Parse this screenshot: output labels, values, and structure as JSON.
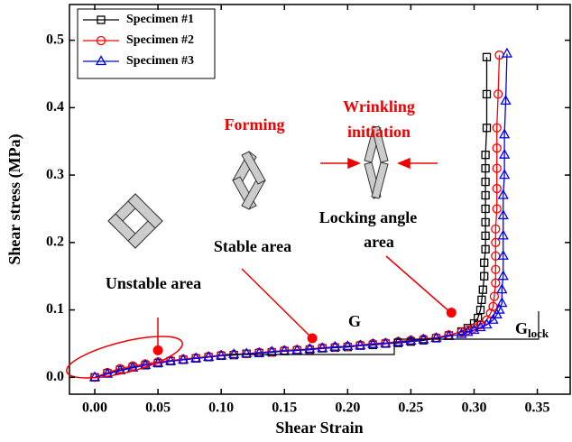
{
  "chart_data": {
    "type": "line",
    "x_label": "Shear Strain",
    "y_label": "Shear stress (MPa)",
    "xlim": [
      -0.02,
      0.376
    ],
    "ylim": [
      -0.025,
      0.553
    ],
    "xticks": [
      {
        "value": 0,
        "label": "0.00"
      },
      0.05,
      {
        "value": 0.1,
        "label": "0.10"
      },
      0.15,
      {
        "value": 0.2,
        "label": "0.20"
      },
      0.25,
      {
        "value": 0.3,
        "label": "0.30"
      },
      0.35
    ],
    "yticks": [
      {
        "value": 0,
        "label": "0.0"
      },
      0.1,
      0.2,
      0.3,
      0.4,
      0.5
    ],
    "series": [
      {
        "name": "Specimen #1",
        "color": "#000000",
        "marker": "square",
        "x": [
          0,
          0.01,
          0.02,
          0.03,
          0.04,
          0.05,
          0.06,
          0.07,
          0.08,
          0.09,
          0.1,
          0.11,
          0.12,
          0.13,
          0.14,
          0.15,
          0.16,
          0.17,
          0.18,
          0.19,
          0.2,
          0.21,
          0.22,
          0.23,
          0.24,
          0.25,
          0.26,
          0.27,
          0.28,
          0.29,
          0.295,
          0.3,
          0.303,
          0.305,
          0.306,
          0.307,
          0.308,
          0.308,
          0.309,
          0.309,
          0.309,
          0.309,
          0.309,
          0.309,
          0.309,
          0.309,
          0.31,
          0.31,
          0.31
        ],
        "values": [
          0,
          0.006,
          0.011,
          0.015,
          0.018,
          0.021,
          0.024,
          0.026,
          0.028,
          0.03,
          0.032,
          0.033,
          0.035,
          0.036,
          0.037,
          0.039,
          0.04,
          0.041,
          0.043,
          0.044,
          0.045,
          0.047,
          0.048,
          0.05,
          0.051,
          0.053,
          0.055,
          0.058,
          0.062,
          0.068,
          0.073,
          0.08,
          0.088,
          0.1,
          0.115,
          0.13,
          0.15,
          0.17,
          0.19,
          0.21,
          0.23,
          0.25,
          0.27,
          0.29,
          0.31,
          0.33,
          0.37,
          0.42,
          0.475
        ]
      },
      {
        "name": "Specimen #2",
        "color": "#ff0000",
        "marker": "circle",
        "x": [
          0,
          0.01,
          0.02,
          0.03,
          0.04,
          0.05,
          0.06,
          0.07,
          0.08,
          0.09,
          0.1,
          0.11,
          0.12,
          0.13,
          0.14,
          0.15,
          0.16,
          0.17,
          0.18,
          0.19,
          0.2,
          0.21,
          0.22,
          0.23,
          0.24,
          0.25,
          0.26,
          0.27,
          0.28,
          0.29,
          0.295,
          0.3,
          0.305,
          0.31,
          0.313,
          0.315,
          0.316,
          0.317,
          0.317,
          0.317,
          0.317,
          0.317,
          0.318,
          0.318,
          0.318,
          0.318,
          0.318,
          0.319,
          0.32
        ],
        "values": [
          0,
          0.007,
          0.013,
          0.017,
          0.02,
          0.023,
          0.025,
          0.027,
          0.029,
          0.031,
          0.033,
          0.034,
          0.035,
          0.037,
          0.038,
          0.04,
          0.041,
          0.042,
          0.044,
          0.045,
          0.046,
          0.048,
          0.05,
          0.051,
          0.053,
          0.055,
          0.057,
          0.059,
          0.063,
          0.067,
          0.07,
          0.073,
          0.078,
          0.085,
          0.095,
          0.105,
          0.12,
          0.14,
          0.16,
          0.18,
          0.2,
          0.22,
          0.25,
          0.28,
          0.31,
          0.34,
          0.37,
          0.42,
          0.478
        ]
      },
      {
        "name": "Specimen #3",
        "color": "#0000ff",
        "marker": "triangle",
        "x": [
          0,
          0.01,
          0.02,
          0.03,
          0.04,
          0.05,
          0.06,
          0.07,
          0.08,
          0.09,
          0.1,
          0.11,
          0.12,
          0.13,
          0.14,
          0.15,
          0.16,
          0.17,
          0.18,
          0.19,
          0.2,
          0.21,
          0.22,
          0.23,
          0.24,
          0.25,
          0.26,
          0.27,
          0.28,
          0.29,
          0.295,
          0.3,
          0.305,
          0.31,
          0.315,
          0.318,
          0.32,
          0.322,
          0.322,
          0.323,
          0.323,
          0.323,
          0.323,
          0.323,
          0.324,
          0.324,
          0.324,
          0.325,
          0.326
        ],
        "values": [
          0,
          0.005,
          0.01,
          0.014,
          0.018,
          0.021,
          0.024,
          0.026,
          0.028,
          0.03,
          0.032,
          0.034,
          0.035,
          0.036,
          0.038,
          0.039,
          0.04,
          0.042,
          0.043,
          0.045,
          0.046,
          0.047,
          0.049,
          0.05,
          0.052,
          0.054,
          0.056,
          0.058,
          0.061,
          0.064,
          0.067,
          0.07,
          0.074,
          0.078,
          0.085,
          0.093,
          0.1,
          0.11,
          0.13,
          0.15,
          0.18,
          0.21,
          0.24,
          0.27,
          0.3,
          0.33,
          0.36,
          0.41,
          0.48
        ]
      }
    ],
    "highlight_points": {
      "color": "#ff0000",
      "x": [
        0.05,
        0.172,
        0.282
      ],
      "values": [
        0.04,
        0.058,
        0.096
      ]
    },
    "annotations": {
      "forming": "Forming",
      "wrinkling_1": "Wrinkling",
      "wrinkling_2": "initiation",
      "stable": "Stable area",
      "locking_1": "Locking angle",
      "locking_2": "area",
      "unstable": "Unstable area",
      "g": "G",
      "g_lock": {
        "main": "G",
        "sub": "lock"
      }
    }
  }
}
